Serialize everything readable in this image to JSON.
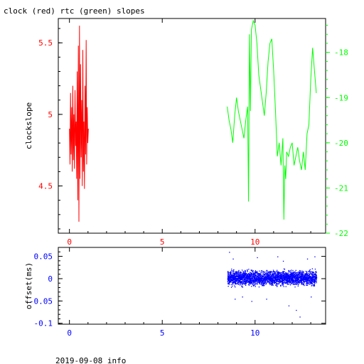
{
  "title": "clock (red) rtc (green) slopes",
  "footer": "2019-09-08 info",
  "colors": {
    "red": "#ff0000",
    "green": "#00ff00",
    "blue": "#0000ff",
    "axis": "#000000"
  },
  "chart_data": [
    {
      "type": "line",
      "ylabel": "clockslope",
      "xlim": [
        -0.6,
        13.8
      ],
      "xticks": [
        0,
        5,
        10
      ],
      "xtick_labels": [
        "0",
        "5",
        "10"
      ],
      "left_axis": {
        "ylim": [
          4.17,
          5.67
        ],
        "ticks": [
          4.5,
          5,
          5.5
        ],
        "tick_labels": [
          "4.5",
          "5",
          "5.5"
        ]
      },
      "right_axis": {
        "ylim": [
          -22,
          -17.25
        ],
        "ticks": [
          -18,
          -19,
          -20,
          -21,
          -22
        ],
        "tick_labels": [
          "-18",
          "-19",
          "-20",
          "-21",
          "-22"
        ]
      },
      "series": [
        {
          "name": "clock",
          "color": "#ff0000",
          "axis": "left",
          "x": [
            0.0,
            0.03,
            0.06,
            0.09,
            0.12,
            0.15,
            0.18,
            0.21,
            0.24,
            0.27,
            0.3,
            0.33,
            0.36,
            0.39,
            0.42,
            0.45,
            0.48,
            0.51,
            0.54,
            0.57,
            0.6,
            0.63,
            0.66,
            0.69,
            0.72,
            0.75,
            0.78,
            0.81,
            0.84,
            0.87,
            0.9,
            0.93,
            0.96,
            0.99,
            1.02
          ],
          "y": [
            4.9,
            4.65,
            5.15,
            4.72,
            5.05,
            4.6,
            5.2,
            4.68,
            5.0,
            4.62,
            5.17,
            4.78,
            4.95,
            4.55,
            5.3,
            4.4,
            5.48,
            4.25,
            5.62,
            4.55,
            5.35,
            4.7,
            5.1,
            4.5,
            5.45,
            4.6,
            4.95,
            4.48,
            5.2,
            4.72,
            5.52,
            4.65,
            5.05,
            4.8,
            4.9
          ]
        },
        {
          "name": "rtc",
          "color": "#00ff00",
          "axis": "right",
          "x": [
            8.5,
            8.6,
            8.7,
            8.8,
            8.9,
            9.0,
            9.1,
            9.2,
            9.3,
            9.4,
            9.5,
            9.6,
            9.65,
            9.7,
            9.75,
            9.8,
            9.9,
            10.0,
            10.1,
            10.2,
            10.3,
            10.4,
            10.5,
            10.6,
            10.7,
            10.8,
            10.9,
            11.0,
            11.1,
            11.2,
            11.3,
            11.4,
            11.5,
            11.55,
            11.6,
            11.65,
            11.7,
            11.8,
            11.9,
            12.0,
            12.1,
            12.2,
            12.3,
            12.4,
            12.5,
            12.6,
            12.7,
            12.8,
            12.9,
            13.0,
            13.1,
            13.2,
            13.3
          ],
          "y": [
            -19.2,
            -19.5,
            -19.7,
            -20.0,
            -19.4,
            -19.0,
            -19.3,
            -19.5,
            -19.7,
            -19.9,
            -19.5,
            -19.2,
            -21.3,
            -17.6,
            -19.3,
            -17.5,
            -17.3,
            -17.4,
            -17.8,
            -18.5,
            -18.8,
            -19.1,
            -19.4,
            -18.9,
            -18.2,
            -17.8,
            -17.7,
            -18.4,
            -19.3,
            -20.3,
            -20.0,
            -20.5,
            -19.9,
            -21.7,
            -20.5,
            -20.8,
            -20.2,
            -20.3,
            -20.1,
            -20.0,
            -20.5,
            -20.3,
            -20.1,
            -20.4,
            -20.6,
            -20.2,
            -20.6,
            -19.8,
            -19.6,
            -18.6,
            -17.9,
            -18.4,
            -18.9
          ]
        }
      ]
    },
    {
      "type": "scatter",
      "ylabel": "offset(ms)",
      "xlim": [
        -0.6,
        13.8
      ],
      "ylim": [
        -0.102,
        0.07
      ],
      "xticks": [
        0,
        5,
        10
      ],
      "xtick_labels": [
        "0",
        "5",
        "10"
      ],
      "yticks": [
        0.05,
        0,
        -0.05,
        -0.1
      ],
      "ytick_labels": [
        "0.05",
        "0",
        "-0.05",
        "-0.1"
      ],
      "series": [
        {
          "name": "offset",
          "color": "#0000ff",
          "x_range": [
            8.5,
            13.3
          ],
          "band": [
            -0.02,
            0.025
          ],
          "outliers": [
            {
              "x": 8.6,
              "y": 0.06
            },
            {
              "x": 8.8,
              "y": 0.045
            },
            {
              "x": 9.3,
              "y": -0.04
            },
            {
              "x": 10.1,
              "y": 0.048
            },
            {
              "x": 10.6,
              "y": -0.045
            },
            {
              "x": 11.2,
              "y": 0.05
            },
            {
              "x": 11.8,
              "y": -0.06
            },
            {
              "x": 12.2,
              "y": -0.07
            },
            {
              "x": 12.4,
              "y": -0.085
            },
            {
              "x": 12.8,
              "y": 0.045
            },
            {
              "x": 13.0,
              "y": -0.04
            },
            {
              "x": 13.2,
              "y": 0.05
            },
            {
              "x": 9.8,
              "y": -0.05
            },
            {
              "x": 11.5,
              "y": 0.04
            },
            {
              "x": 8.9,
              "y": -0.045
            }
          ]
        }
      ]
    }
  ]
}
